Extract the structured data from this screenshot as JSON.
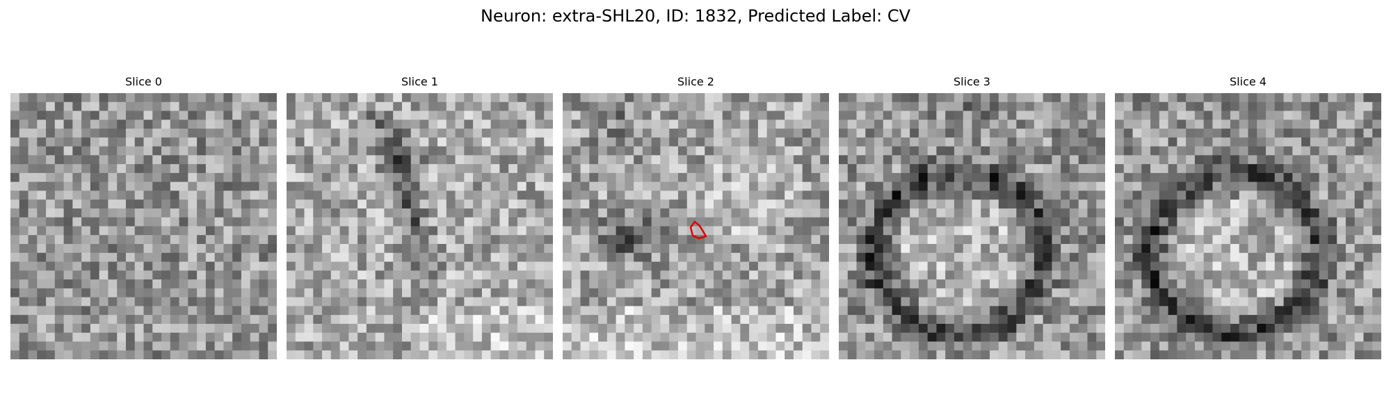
{
  "figure": {
    "title": "Neuron: extra-SHL20, ID: 1832, Predicted Label: CV"
  },
  "panels": [
    {
      "title": "Slice 0",
      "pattern": "noise"
    },
    {
      "title": "Slice 1",
      "pattern": "dark-streaks"
    },
    {
      "title": "Slice 2",
      "pattern": "dark-blob",
      "contour": {
        "color": "#e00000",
        "shape": "small closed outline"
      }
    },
    {
      "title": "Slice 3",
      "pattern": "dark-ring"
    },
    {
      "title": "Slice 4",
      "pattern": "dark-ring"
    }
  ],
  "image": {
    "grid": 30,
    "colormap": "grayscale"
  }
}
